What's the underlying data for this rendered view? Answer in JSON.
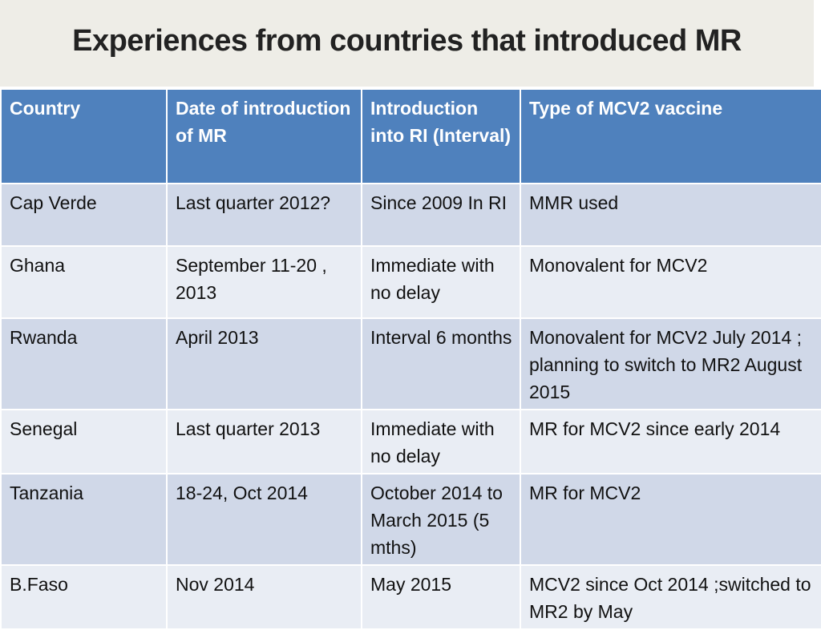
{
  "header": {
    "title": "Experiences from countries that introduced MR"
  },
  "table": {
    "columns": [
      "Country",
      "Date of introduction of MR",
      "Introduction into RI (Interval)",
      "Type of MCV2 vaccine"
    ],
    "rows": [
      [
        "Cap Verde",
        "Last quarter 2012?",
        "Since 2009 In RI",
        "MMR used"
      ],
      [
        "Ghana",
        "September 11-20 , 2013",
        "Immediate with no delay",
        "Monovalent for MCV2"
      ],
      [
        "Rwanda",
        "April 2013",
        "Interval 6 months",
        "Monovalent for MCV2 July 2014 ; planning to switch to MR2 August 2015"
      ],
      [
        "Senegal",
        "Last quarter 2013",
        "Immediate with no delay",
        "MR for MCV2 since early 2014"
      ],
      [
        "Tanzania",
        "18-24, Oct 2014",
        "October 2014 to March 2015 (5 mths)",
        "MR for MCV2"
      ],
      [
        "B.Faso",
        "Nov 2014",
        "May 2015",
        "MCV2 since Oct 2014 ;switched to MR2 by May"
      ]
    ]
  }
}
